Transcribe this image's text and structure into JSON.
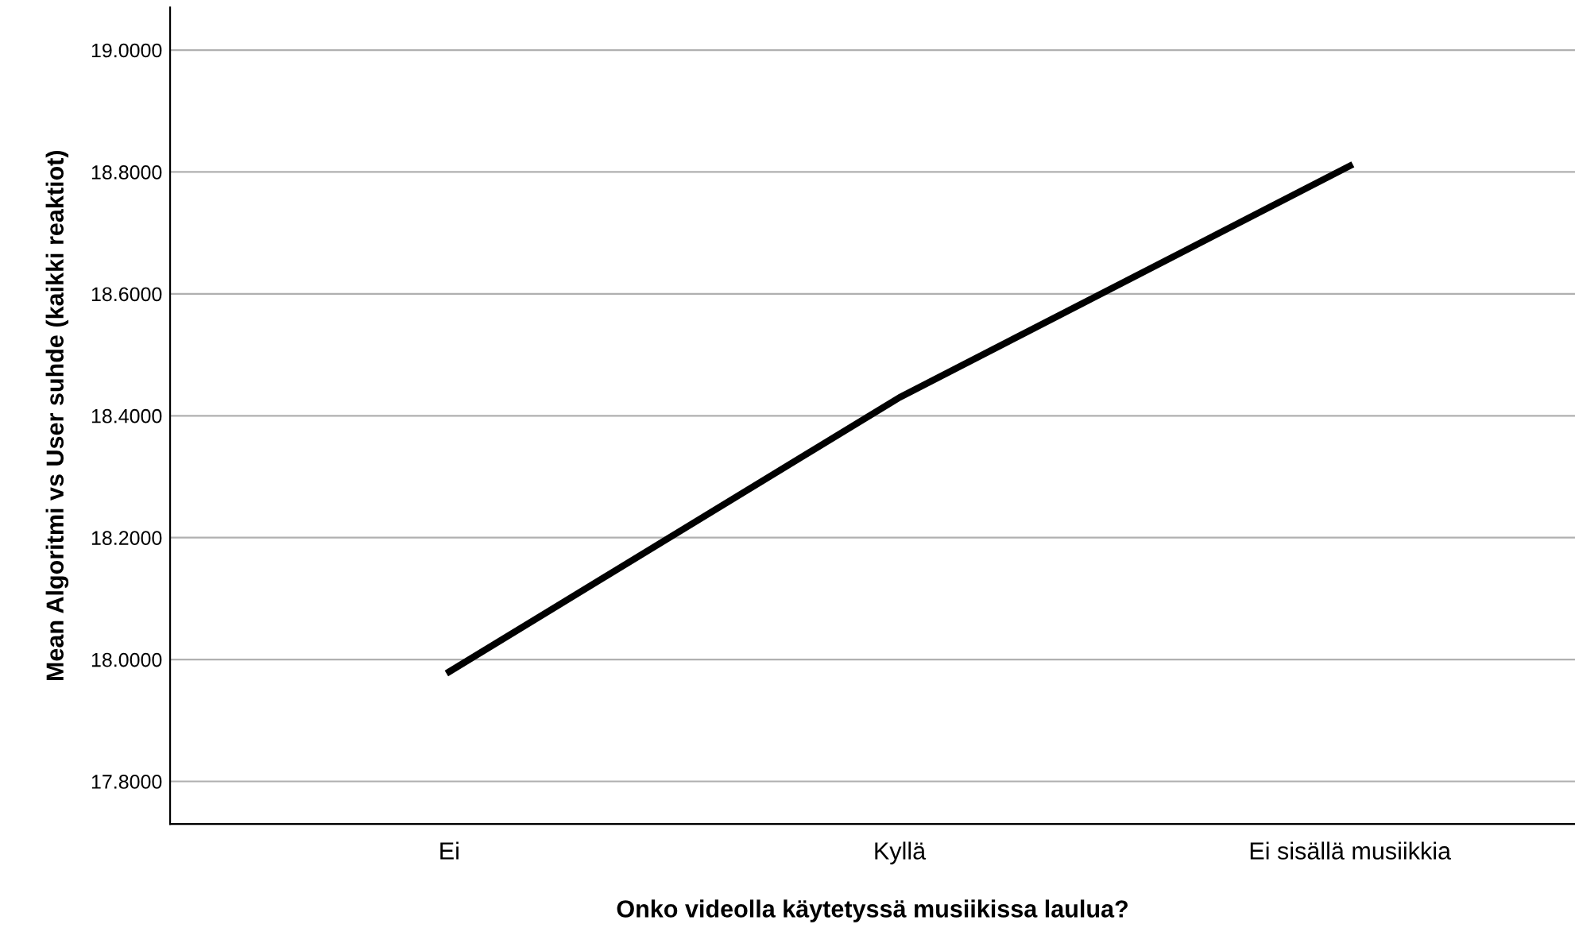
{
  "chart_data": {
    "type": "line",
    "xlabel": "Onko videolla käytetyssä musiikissa laulua?",
    "ylabel": "Mean Algoritmi vs User suhde (kaikki reaktiot)",
    "categories": [
      "Ei",
      "Kyllä",
      "Ei sisällä musiikkia"
    ],
    "series": [
      {
        "color": "#000000",
        "values": [
          17.98,
          18.43,
          18.81
        ]
      }
    ],
    "ylim": [
      17.73,
      19.07
    ],
    "yticks": [
      {
        "value": 17.8,
        "label": "17.8000"
      },
      {
        "value": 18.0,
        "label": "18.0000"
      },
      {
        "value": 18.2,
        "label": "18.2000"
      },
      {
        "value": 18.4,
        "label": "18.4000"
      },
      {
        "value": 18.6,
        "label": "18.6000"
      },
      {
        "value": 18.8,
        "label": "18.8000"
      },
      {
        "value": 19.0,
        "label": "19.0000"
      }
    ],
    "grid": "y",
    "marker": "none",
    "line_style": "solid"
  }
}
